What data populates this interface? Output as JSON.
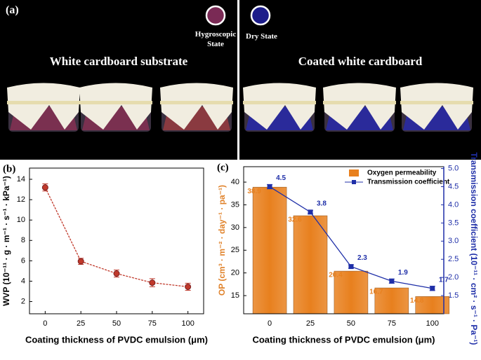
{
  "panel_a": {
    "label": "(a)",
    "left": {
      "title": "White cardboard substrate",
      "state": "Hygroscopic State"
    },
    "right": {
      "title": "Coated white cardboard",
      "state": "Dry State"
    }
  },
  "chart_data": [
    {
      "type": "line",
      "panel_label": "(b)",
      "x_label": "Coating thickness of PVDC emulsion (μm)",
      "y_label": "WVP (10⁻¹¹ · g · m⁻¹ · s⁻¹ · kPa⁻¹)",
      "x": [
        0,
        25,
        50,
        75,
        100
      ],
      "values": [
        13.2,
        5.95,
        4.75,
        3.85,
        3.45
      ],
      "errors": [
        0.35,
        0.3,
        0.35,
        0.4,
        0.35
      ],
      "color": "#c0392b",
      "xlim": [
        -11,
        111
      ],
      "xticks": [
        0,
        25,
        50,
        75,
        100
      ],
      "ylim": [
        0.8,
        15.1
      ],
      "yticks": [
        2,
        4,
        6,
        8,
        10,
        12,
        14
      ]
    },
    {
      "type": "bar",
      "panel_label": "(c)",
      "x_label": "Coating thickness of PVDC emulsion (μm)",
      "y_label": "OP (cm³ · m⁻² · day⁻¹ · pa⁻¹)",
      "y2_label": "Transmission coefficient (10⁻¹¹ · cm² · s⁻¹ · Pa⁻¹)",
      "x": [
        0,
        25,
        50,
        75,
        100
      ],
      "series": [
        {
          "name": "Oxygen permeability",
          "type": "bar",
          "color": "#e8801e",
          "values": [
            38.9,
            32.6,
            20.4,
            16.7,
            14.8
          ]
        },
        {
          "name": "Transmission coefficient",
          "type": "line",
          "axis": "y2",
          "color": "#1f2fa8",
          "values": [
            4.5,
            3.8,
            2.3,
            1.9,
            1.7
          ],
          "errors": [
            0.06,
            0.05,
            0.05,
            0.06,
            0.06
          ]
        }
      ],
      "legend": "upper right",
      "xlim": [
        -16,
        107
      ],
      "xticks": [
        0,
        25,
        50,
        75,
        100
      ],
      "ylim": [
        11,
        43.4
      ],
      "yticks": [
        15,
        20,
        25,
        30,
        35,
        40
      ],
      "y2lim": [
        1.0,
        5.05
      ],
      "y2ticks": [
        1.5,
        {
          "value": 2,
          "label": "2.0"
        },
        2.5,
        {
          "value": 3,
          "label": "3.0"
        },
        3.5,
        {
          "value": 4,
          "label": "4.0"
        },
        4.5,
        {
          "value": 5,
          "label": "5.0"
        }
      ]
    }
  ]
}
